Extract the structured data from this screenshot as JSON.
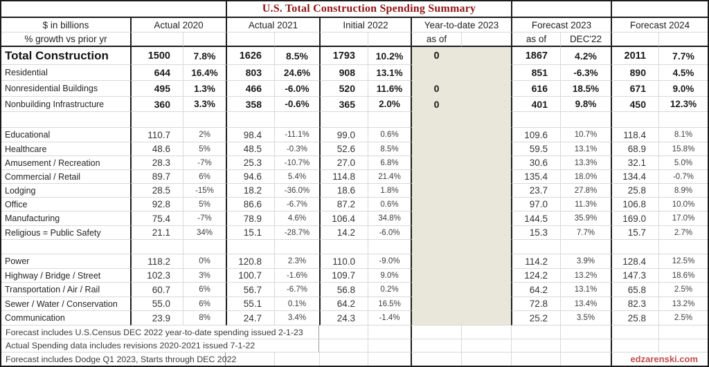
{
  "colors": {
    "title_red": "#8F1414",
    "watermark_red": "#C0504D",
    "ytd_shade": "#E8E7DA",
    "grid_line": "#D8D8D8",
    "border_black": "#1A1A1A"
  },
  "chart_data": {
    "type": "table",
    "title": "U.S. Total Construction Spending Summary",
    "unit_label": "$ in billions",
    "growth_label": "% growth vs prior yr",
    "column_groups": [
      {
        "label": "Actual 2020",
        "sub_left": "",
        "sub_right": ""
      },
      {
        "label": "Actual 2021",
        "sub_left": "",
        "sub_right": ""
      },
      {
        "label": "Initial 2022",
        "sub_left": "",
        "sub_right": ""
      },
      {
        "label": "Year-to-date 2023",
        "sub_left": "as of",
        "sub_right": ""
      },
      {
        "label": "Forecast 2023",
        "sub_left": "as of",
        "sub_right": "DEC'22"
      },
      {
        "label": "Forecast 2024",
        "sub_left": "",
        "sub_right": ""
      }
    ],
    "shaded_group": "Year-to-date 2023",
    "rows": [
      {
        "label": "Total Construction",
        "kind": "total",
        "cells": [
          "1500",
          "7.8%",
          "1626",
          "8.5%",
          "1793",
          "10.2%",
          "0",
          "",
          "1867",
          "4.2%",
          "2011",
          "7.7%"
        ]
      },
      {
        "label": "Residential",
        "kind": "bold",
        "cells": [
          "644",
          "16.4%",
          "803",
          "24.6%",
          "908",
          "13.1%",
          "",
          "",
          "851",
          "-6.3%",
          "890",
          "4.5%"
        ]
      },
      {
        "label": "Nonresidential Buildings",
        "kind": "bold",
        "cells": [
          "495",
          "1.3%",
          "466",
          "-6.0%",
          "520",
          "11.6%",
          "0",
          "",
          "616",
          "18.5%",
          "671",
          "9.0%"
        ]
      },
      {
        "label": "Nonbuilding Infrastructure",
        "kind": "bold",
        "cells": [
          "360",
          "3.3%",
          "358",
          "-0.6%",
          "365",
          "2.0%",
          "0",
          "",
          "401",
          "9.8%",
          "450",
          "12.3%"
        ]
      },
      {
        "label": "",
        "kind": "spacer",
        "cells": [
          "",
          "",
          "",
          "",
          "",
          "",
          "",
          "",
          "",
          "",
          "",
          ""
        ]
      },
      {
        "label": "Educational",
        "kind": "detail",
        "cells": [
          "110.7",
          "2%",
          "98.4",
          "-11.1%",
          "99.0",
          "0.6%",
          "",
          "",
          "109.6",
          "10.7%",
          "118.4",
          "8.1%"
        ]
      },
      {
        "label": "Healthcare",
        "kind": "detail",
        "cells": [
          "48.6",
          "5%",
          "48.5",
          "-0.3%",
          "52.6",
          "8.5%",
          "",
          "",
          "59.5",
          "13.1%",
          "68.9",
          "15.8%"
        ]
      },
      {
        "label": "Amusement / Recreation",
        "kind": "detail",
        "cells": [
          "28.3",
          "-7%",
          "25.3",
          "-10.7%",
          "27.0",
          "6.8%",
          "",
          "",
          "30.6",
          "13.3%",
          "32.1",
          "5.0%"
        ]
      },
      {
        "label": "Commercial / Retail",
        "kind": "detail",
        "cells": [
          "89.7",
          "6%",
          "94.6",
          "5.4%",
          "114.8",
          "21.4%",
          "",
          "",
          "135.4",
          "18.0%",
          "134.4",
          "-0.7%"
        ]
      },
      {
        "label": "Lodging",
        "kind": "detail",
        "cells": [
          "28.5",
          "-15%",
          "18.2",
          "-36.0%",
          "18.6",
          "1.8%",
          "",
          "",
          "23.7",
          "27.8%",
          "25.8",
          "8.9%"
        ]
      },
      {
        "label": "Office",
        "kind": "detail",
        "cells": [
          "92.8",
          "5%",
          "86.6",
          "-6.7%",
          "87.2",
          "0.6%",
          "",
          "",
          "97.0",
          "11.3%",
          "106.8",
          "10.0%"
        ]
      },
      {
        "label": "Manufacturing",
        "kind": "detail",
        "cells": [
          "75.4",
          "-7%",
          "78.9",
          "4.6%",
          "106.4",
          "34.8%",
          "",
          "",
          "144.5",
          "35.9%",
          "169.0",
          "17.0%"
        ]
      },
      {
        "label": "Religious = Public Safety",
        "kind": "detail",
        "cells": [
          "21.1",
          "34%",
          "15.1",
          "-28.7%",
          "14.2",
          "-6.0%",
          "",
          "",
          "15.3",
          "7.7%",
          "15.7",
          "2.7%"
        ]
      },
      {
        "label": "",
        "kind": "spacer",
        "cells": [
          "",
          "",
          "",
          "",
          "",
          "",
          "",
          "",
          "",
          "",
          "",
          ""
        ]
      },
      {
        "label": "Power",
        "kind": "detail",
        "cells": [
          "118.2",
          "0%",
          "120.8",
          "2.3%",
          "110.0",
          "-9.0%",
          "",
          "",
          "114.2",
          "3.9%",
          "128.4",
          "12.5%"
        ]
      },
      {
        "label": "Highway / Bridge / Street",
        "kind": "detail",
        "cells": [
          "102.3",
          "3%",
          "100.7",
          "-1.6%",
          "109.7",
          "9.0%",
          "",
          "",
          "124.2",
          "13.2%",
          "147.3",
          "18.6%"
        ]
      },
      {
        "label": "Transportation / Air / Rail",
        "kind": "detail",
        "cells": [
          "60.7",
          "6%",
          "56.7",
          "-6.7%",
          "56.8",
          "0.2%",
          "",
          "",
          "64.2",
          "13.1%",
          "65.8",
          "2.5%"
        ]
      },
      {
        "label": "Sewer / Water / Conservation",
        "kind": "detail",
        "cells": [
          "55.0",
          "6%",
          "55.1",
          "0.1%",
          "64.2",
          "16.5%",
          "",
          "",
          "72.8",
          "13.4%",
          "82.3",
          "13.2%"
        ]
      },
      {
        "label": "Communication",
        "kind": "detail",
        "cells": [
          "23.9",
          "8%",
          "24.7",
          "3.4%",
          "24.3",
          "-1.4%",
          "",
          "",
          "25.2",
          "3.5%",
          "25.8",
          "2.5%"
        ]
      }
    ],
    "footnotes": [
      "Forecast includes U.S.Census DEC 2022 year-to-date spending issued 2-1-23",
      "Actual Spending data includes revisions 2020-2021 issued 7-1-22",
      "Forecast includes Dodge Q1 2023, Starts through DEC 2022"
    ],
    "watermark": "edzarenski.com"
  }
}
